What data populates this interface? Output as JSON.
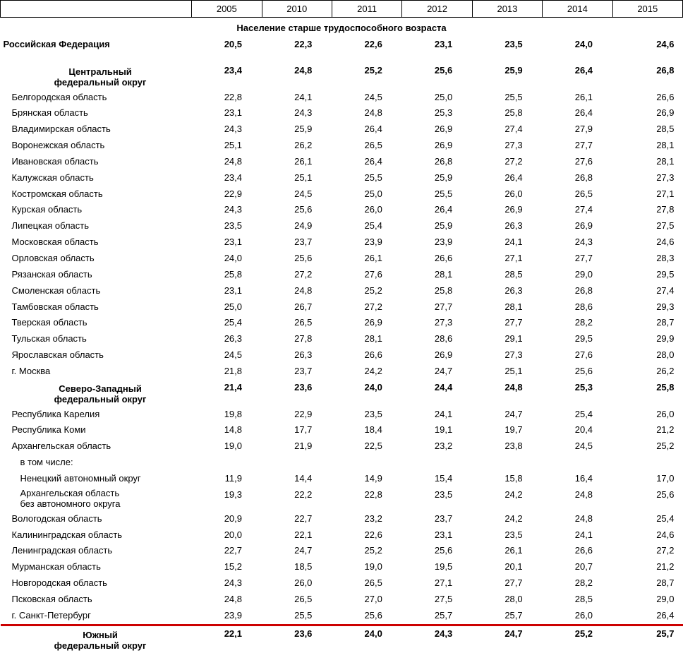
{
  "columns": [
    "2005",
    "2010",
    "2011",
    "2012",
    "2013",
    "2014",
    "2015"
  ],
  "subtitle": "Население старше трудоспособного возраста",
  "russia": {
    "label": "Российская Федерация",
    "vals": [
      "20,5",
      "22,3",
      "22,6",
      "23,1",
      "23,5",
      "24,0",
      "24,6"
    ]
  },
  "central": {
    "name_l1": "Центральный",
    "name_l2": "федеральный округ",
    "vals": [
      "23,4",
      "24,8",
      "25,2",
      "25,6",
      "25,9",
      "26,4",
      "26,8"
    ],
    "rows": [
      {
        "label": "Белгородская область",
        "vals": [
          "22,8",
          "24,1",
          "24,5",
          "25,0",
          "25,5",
          "26,1",
          "26,6"
        ]
      },
      {
        "label": "Брянская область",
        "vals": [
          "23,1",
          "24,3",
          "24,8",
          "25,3",
          "25,8",
          "26,4",
          "26,9"
        ]
      },
      {
        "label": "Владимирская область",
        "vals": [
          "24,3",
          "25,9",
          "26,4",
          "26,9",
          "27,4",
          "27,9",
          "28,5"
        ]
      },
      {
        "label": "Воронежская область",
        "vals": [
          "25,1",
          "26,2",
          "26,5",
          "26,9",
          "27,3",
          "27,7",
          "28,1"
        ]
      },
      {
        "label": "Ивановская область",
        "vals": [
          "24,8",
          "26,1",
          "26,4",
          "26,8",
          "27,2",
          "27,6",
          "28,1"
        ]
      },
      {
        "label": "Калужская область",
        "vals": [
          "23,4",
          "25,1",
          "25,5",
          "25,9",
          "26,4",
          "26,8",
          "27,3"
        ]
      },
      {
        "label": "Костромская область",
        "vals": [
          "22,9",
          "24,5",
          "25,0",
          "25,5",
          "26,0",
          "26,5",
          "27,1"
        ]
      },
      {
        "label": "Курская область",
        "vals": [
          "24,3",
          "25,6",
          "26,0",
          "26,4",
          "26,9",
          "27,4",
          "27,8"
        ]
      },
      {
        "label": "Липецкая область",
        "vals": [
          "23,5",
          "24,9",
          "25,4",
          "25,9",
          "26,3",
          "26,9",
          "27,5"
        ]
      },
      {
        "label": "Московская область",
        "vals": [
          "23,1",
          "23,7",
          "23,9",
          "23,9",
          "24,1",
          "24,3",
          "24,6"
        ]
      },
      {
        "label": "Орловская область",
        "vals": [
          "24,0",
          "25,6",
          "26,1",
          "26,6",
          "27,1",
          "27,7",
          "28,3"
        ]
      },
      {
        "label": "Рязанская область",
        "vals": [
          "25,8",
          "27,2",
          "27,6",
          "28,1",
          "28,5",
          "29,0",
          "29,5"
        ]
      },
      {
        "label": "Смоленская область",
        "vals": [
          "23,1",
          "24,8",
          "25,2",
          "25,8",
          "26,3",
          "26,8",
          "27,4"
        ]
      },
      {
        "label": "Тамбовская область",
        "vals": [
          "25,0",
          "26,7",
          "27,2",
          "27,7",
          "28,1",
          "28,6",
          "29,3"
        ]
      },
      {
        "label": "Тверская область",
        "vals": [
          "25,4",
          "26,5",
          "26,9",
          "27,3",
          "27,7",
          "28,2",
          "28,7"
        ]
      },
      {
        "label": "Тульская область",
        "vals": [
          "26,3",
          "27,8",
          "28,1",
          "28,6",
          "29,1",
          "29,5",
          "29,9"
        ]
      },
      {
        "label": "Ярославская область",
        "vals": [
          "24,5",
          "26,3",
          "26,6",
          "26,9",
          "27,3",
          "27,6",
          "28,0"
        ]
      },
      {
        "label": "г. Москва",
        "vals": [
          "21,8",
          "23,7",
          "24,2",
          "24,7",
          "25,1",
          "25,6",
          "26,2"
        ]
      }
    ]
  },
  "northwest": {
    "name_l1": "Северо-Западный",
    "name_l2": "федеральный округ",
    "vals": [
      "21,4",
      "23,6",
      "24,0",
      "24,4",
      "24,8",
      "25,3",
      "25,8"
    ],
    "rows": [
      {
        "label": "Республика Карелия",
        "vals": [
          "19,8",
          "22,9",
          "23,5",
          "24,1",
          "24,7",
          "25,4",
          "26,0"
        ]
      },
      {
        "label": "Республика Коми",
        "vals": [
          "14,8",
          "17,7",
          "18,4",
          "19,1",
          "19,7",
          "20,4",
          "21,2"
        ]
      },
      {
        "label": "Архангельская область",
        "vals": [
          "19,0",
          "21,9",
          "22,5",
          "23,2",
          "23,8",
          "24,5",
          "25,2"
        ]
      },
      {
        "label": "в том числе:",
        "note": true
      },
      {
        "label": "Ненецкий автономный округ",
        "indent": true,
        "vals": [
          "11,9",
          "14,4",
          "14,9",
          "15,4",
          "15,8",
          "16,4",
          "17,0"
        ]
      },
      {
        "label_l1": "Архангельская область",
        "label_l2": "без автономного округа",
        "indent": true,
        "multiline": true,
        "vals": [
          "19,3",
          "22,2",
          "22,8",
          "23,5",
          "24,2",
          "24,8",
          "25,6"
        ]
      },
      {
        "label": "Вологодская область",
        "vals": [
          "20,9",
          "22,7",
          "23,2",
          "23,7",
          "24,2",
          "24,8",
          "25,4"
        ]
      },
      {
        "label": "Калининградская область",
        "vals": [
          "20,0",
          "22,1",
          "22,6",
          "23,1",
          "23,5",
          "24,1",
          "24,6"
        ]
      },
      {
        "label": "Ленинградская область",
        "vals": [
          "22,7",
          "24,7",
          "25,2",
          "25,6",
          "26,1",
          "26,6",
          "27,2"
        ]
      },
      {
        "label": "Мурманская область",
        "vals": [
          "15,2",
          "18,5",
          "19,0",
          "19,5",
          "20,1",
          "20,7",
          "21,2"
        ]
      },
      {
        "label": "Новгородская область",
        "vals": [
          "24,3",
          "26,0",
          "26,5",
          "27,1",
          "27,7",
          "28,2",
          "28,7"
        ]
      },
      {
        "label": "Псковская область",
        "vals": [
          "24,8",
          "26,5",
          "27,0",
          "27,5",
          "28,0",
          "28,5",
          "29,0"
        ]
      },
      {
        "label": "г. Санкт-Петербург",
        "vals": [
          "23,9",
          "25,5",
          "25,6",
          "25,7",
          "25,7",
          "26,0",
          "26,4"
        ]
      }
    ]
  },
  "south": {
    "name_l1": "Южный",
    "name_l2": "федеральный округ",
    "vals": [
      "22,1",
      "23,6",
      "24,0",
      "24,3",
      "24,7",
      "25,2",
      "25,7"
    ]
  },
  "style": {
    "redline_color": "#cc0000",
    "font_size": 13,
    "bg": "#ffffff"
  }
}
